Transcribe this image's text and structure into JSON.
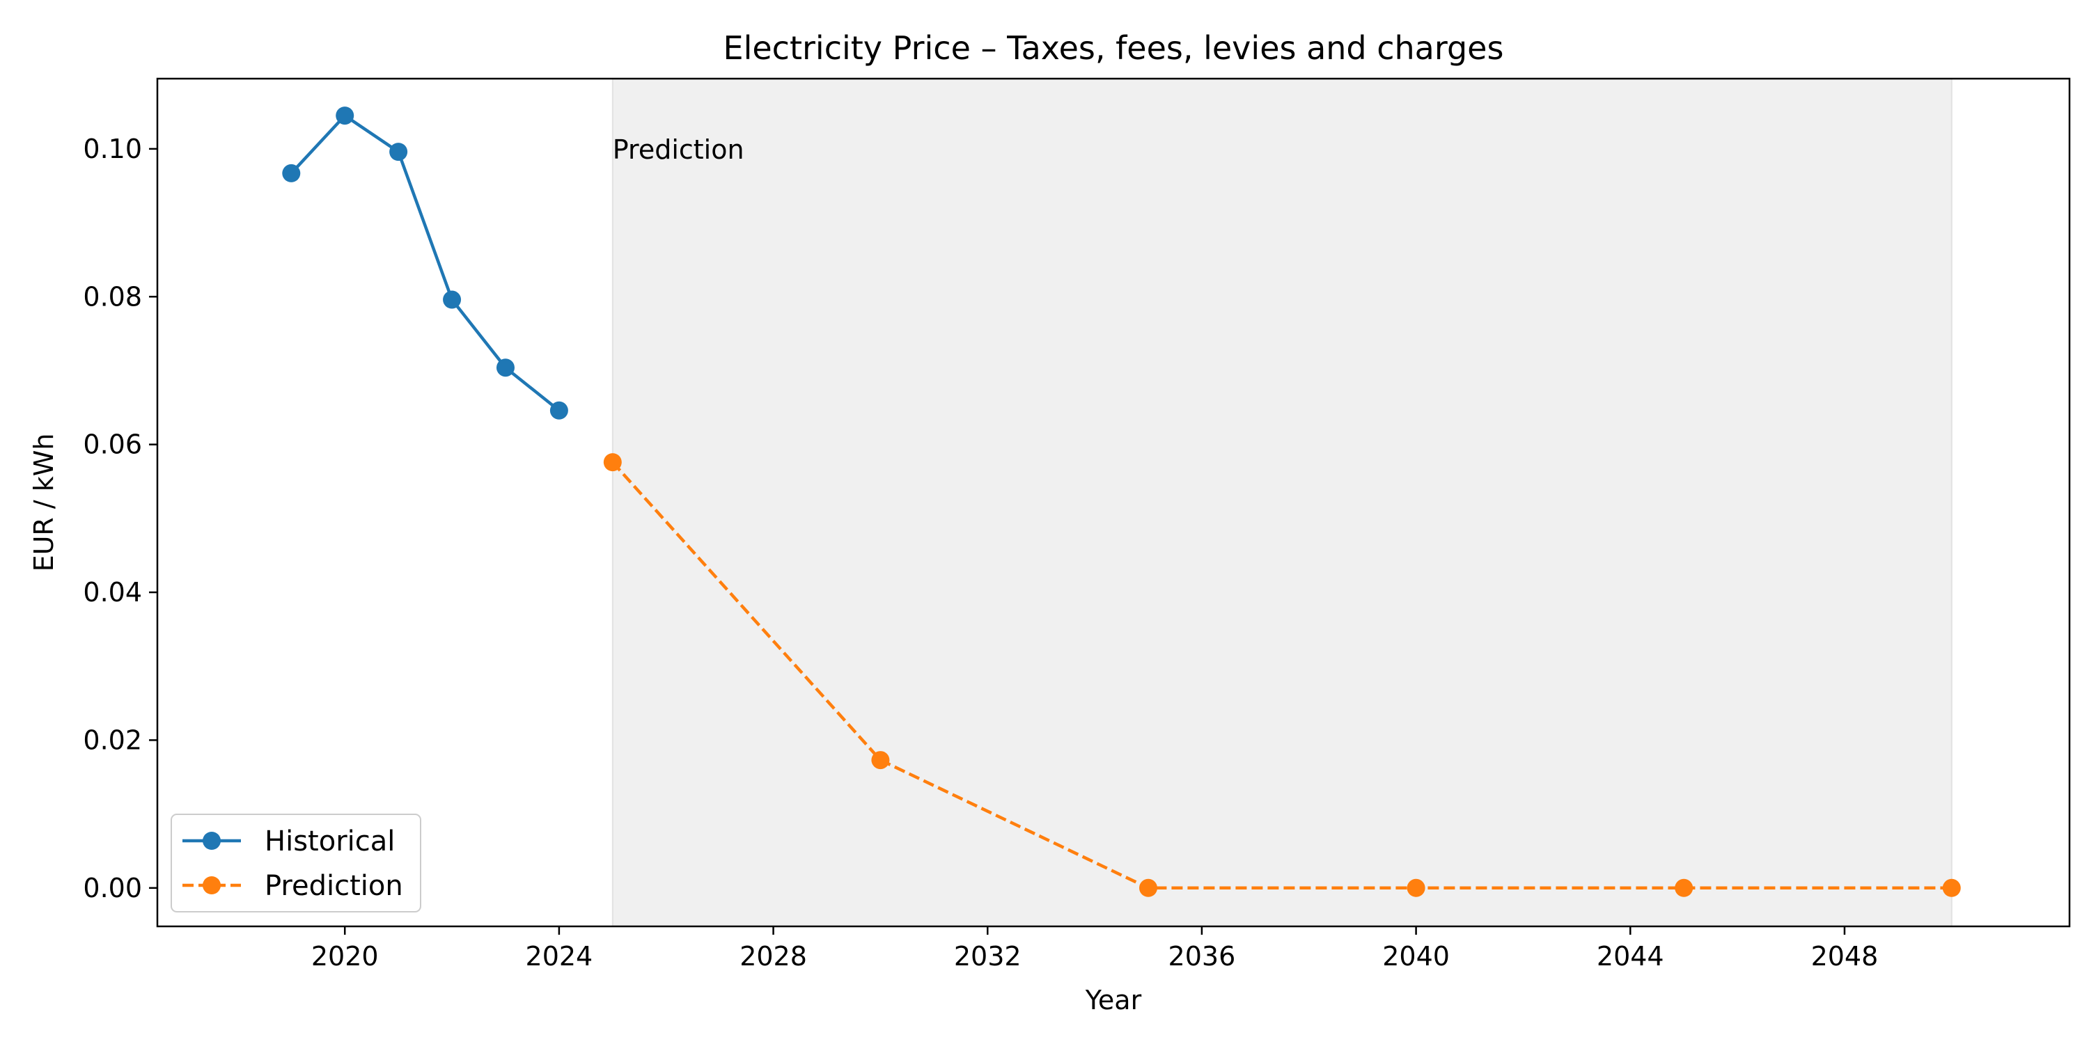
{
  "chart_data": {
    "type": "line",
    "title": "Electricity Price – Taxes, fees, levies and charges",
    "xlabel": "Year",
    "ylabel": "EUR / kWh",
    "xlim": [
      2016.5,
      2052.2
    ],
    "ylim": [
      -0.0052,
      0.1095
    ],
    "xticks": [
      2020,
      2024,
      2028,
      2032,
      2036,
      2040,
      2044,
      2048
    ],
    "yticks": [
      0.0,
      0.02,
      0.04,
      0.06,
      0.08,
      0.1
    ],
    "ytick_decimals": 2,
    "grid": false,
    "legend_placement": "lower-left",
    "prediction_region": {
      "x_start": 2025,
      "x_end": 2050,
      "color": "#f0f0f0",
      "label": "Prediction"
    },
    "series": [
      {
        "name": "Historical",
        "color": "#1f77b4",
        "linestyle": "solid",
        "x": [
          2019,
          2020,
          2021,
          2022,
          2023,
          2024
        ],
        "values": [
          0.0967,
          0.1045,
          0.0996,
          0.0796,
          0.0704,
          0.0646
        ]
      },
      {
        "name": "Prediction",
        "color": "#ff7f0e",
        "linestyle": "dashed",
        "x": [
          2025,
          2030,
          2035,
          2040,
          2045,
          2050
        ],
        "values": [
          0.0576,
          0.0173,
          0.0,
          0.0,
          0.0,
          0.0
        ]
      }
    ]
  }
}
